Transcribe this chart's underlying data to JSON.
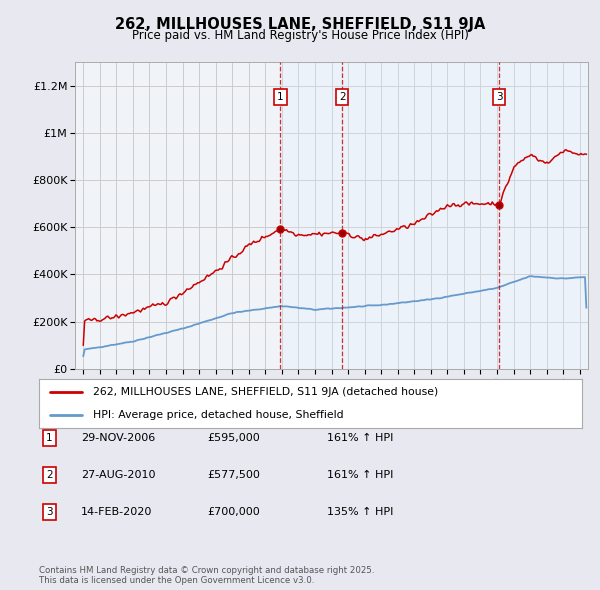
{
  "title": "262, MILLHOUSES LANE, SHEFFIELD, S11 9JA",
  "subtitle": "Price paid vs. HM Land Registry's House Price Index (HPI)",
  "legend_line1": "262, MILLHOUSES LANE, SHEFFIELD, S11 9JA (detached house)",
  "legend_line2": "HPI: Average price, detached house, Sheffield",
  "footer": "Contains HM Land Registry data © Crown copyright and database right 2025.\nThis data is licensed under the Open Government Licence v3.0.",
  "sales": [
    {
      "num": 1,
      "date": "29-NOV-2006",
      "price": 595000,
      "price_str": "£595,000",
      "label": "161% ↑ HPI",
      "year": 2006.91
    },
    {
      "num": 2,
      "date": "27-AUG-2010",
      "price": 577500,
      "price_str": "£577,500",
      "label": "161% ↑ HPI",
      "year": 2010.65
    },
    {
      "num": 3,
      "date": "14-FEB-2020",
      "price": 700000,
      "price_str": "£700,000",
      "label": "135% ↑ HPI",
      "year": 2020.12
    }
  ],
  "ylim": [
    0,
    1300000
  ],
  "xlim": [
    1994.5,
    2025.5
  ],
  "yticks": [
    0,
    200000,
    400000,
    600000,
    800000,
    1000000,
    1200000
  ],
  "ytick_labels": [
    "£0",
    "£200K",
    "£400K",
    "£600K",
    "£800K",
    "£1M",
    "£1.2M"
  ],
  "red_color": "#cc0000",
  "blue_color": "#6699cc",
  "shade_color": "#ddeeff",
  "bg_color": "#e8e8f0",
  "plot_bg": "#f0f4f8",
  "grid_color": "#cccccc",
  "figsize": [
    6.0,
    5.9
  ],
  "dpi": 100
}
